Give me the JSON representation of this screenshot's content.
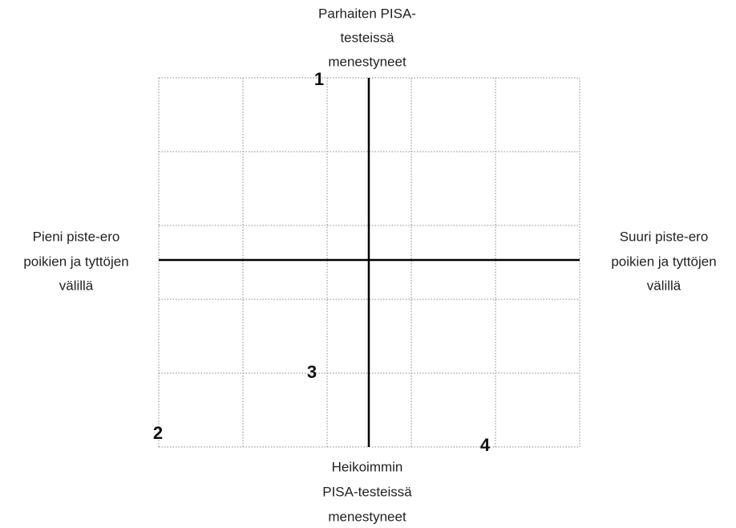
{
  "axes": {
    "top": [
      "Parhaiten PISA-",
      "testeissä",
      "menestyneet"
    ],
    "bottom": [
      "Heikoimmin",
      "PISA-testeissä",
      "menestyneet"
    ],
    "left": [
      "Pieni piste-ero",
      "poikien ja tyttöjen",
      "välillä"
    ],
    "right": [
      "Suuri piste-ero",
      "poikien ja tyttöjen",
      "välillä"
    ]
  },
  "points": [
    {
      "label": "1"
    },
    {
      "label": "2"
    },
    {
      "label": "3"
    },
    {
      "label": "4"
    }
  ]
}
